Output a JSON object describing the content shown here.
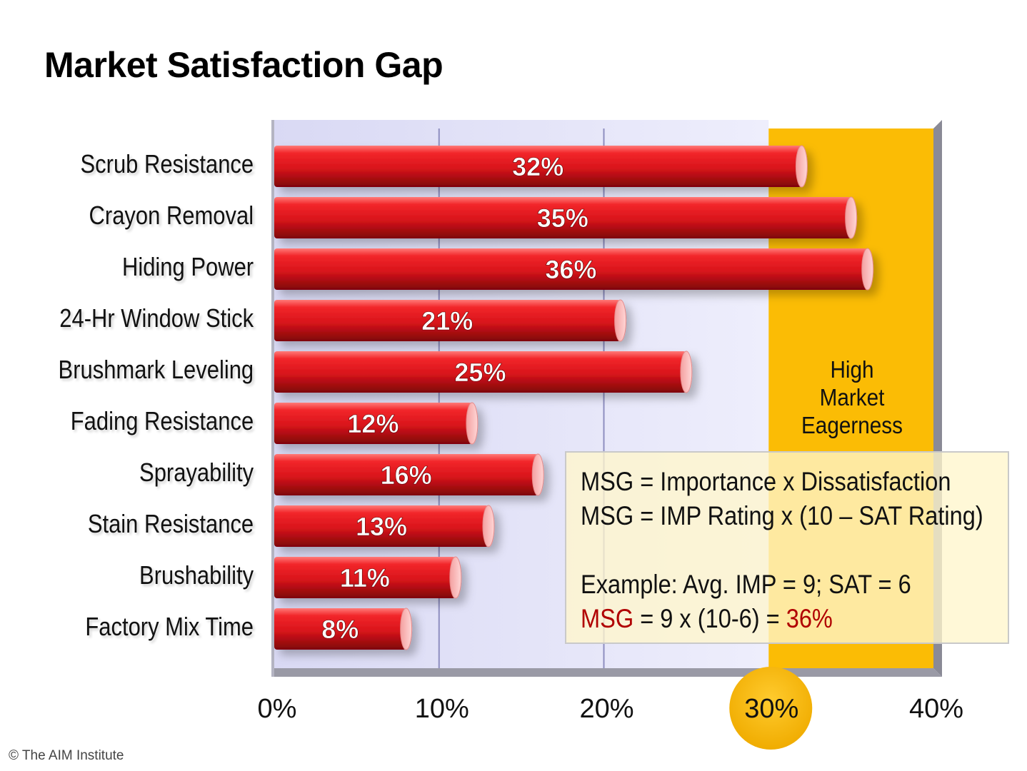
{
  "title": "Market Satisfaction Gap",
  "copyright": "© The AIM Institute",
  "zone_label": [
    "High",
    "Market",
    "Eagerness"
  ],
  "formula": {
    "line1": "MSG = Importance x Dissatisfaction",
    "line2": "MSG = IMP Rating x (10 – SAT Rating)",
    "line3": "Example: Avg. IMP = 9;  SAT = 6",
    "line4_prefix": "MSG",
    "line4_mid": " = 9 x (10-6) = ",
    "line4_value": "36%"
  },
  "colors": {
    "bar": "#d8141b",
    "zone": "#fbbc05",
    "plot_bg": "#e4e4fa",
    "accent_red": "#b00000"
  },
  "chart_data": {
    "type": "bar",
    "orientation": "horizontal",
    "title": "Market Satisfaction Gap",
    "categories": [
      "Scrub Resistance",
      "Crayon Removal",
      "Hiding Power",
      "24-Hr Window Stick",
      "Brushmark Leveling",
      "Fading Resistance",
      "Sprayability",
      "Stain Resistance",
      "Brushability",
      "Factory Mix Time"
    ],
    "values": [
      32,
      35,
      36,
      21,
      25,
      12,
      16,
      13,
      11,
      8
    ],
    "data_labels": [
      "32%",
      "35%",
      "36%",
      "21%",
      "25%",
      "12%",
      "16%",
      "13%",
      "11%",
      "8%"
    ],
    "xticks": [
      "0%",
      "10%",
      "20%",
      "30%",
      "40%"
    ],
    "xlim": [
      0,
      40
    ],
    "highlight_range": [
      30,
      40
    ],
    "highlight_tick": "30%",
    "grid": true
  }
}
